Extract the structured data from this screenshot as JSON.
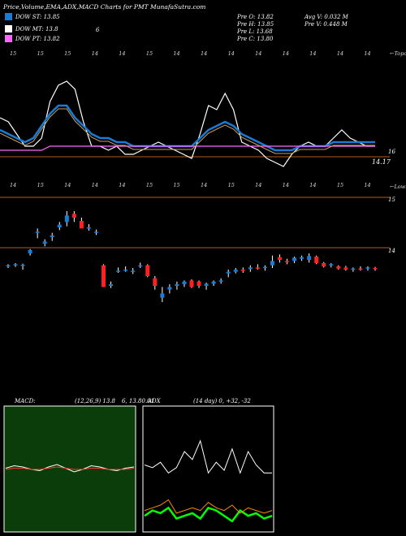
{
  "title": "Price,Volume,EMA,ADX,MACD Charts for PMT MunafaSutra.com",
  "legend": [
    {
      "label": "DOW ST: 13.85",
      "color": "#1a7bd6"
    },
    {
      "label": "DOW MT: 13.8",
      "color": "#ffffff"
    },
    {
      "label": "DOW PT: 13.82",
      "color": "#ff66ff"
    }
  ],
  "legend_extra": "6",
  "prev": {
    "o": "Pre O: 13.82",
    "h": "Pre H: 13.85",
    "l": "Pre L: 13.68",
    "c": "Pre C: 13.80"
  },
  "avg_volume": "Avg V: 0.032 M",
  "pre_volume": "Pre V: 0.448 M",
  "top_right_label": "←Topo",
  "lower_right_label": "←Lown",
  "ema_price_label": "14.17",
  "ema_axis_label": "16",
  "candle_axis_high": "15",
  "candle_axis_low": "14",
  "macd_label": "MACD:",
  "macd_params": "(12,26,9) 13.8",
  "macd_values": "6, 13.80.01",
  "adx_label": "ADX",
  "adx_params": "(14 day) 0, +32, -32",
  "top_tick_labels": [
    "15",
    "15",
    "15",
    "14",
    "14",
    "15",
    "14",
    "14",
    "14",
    "14",
    "14",
    "14",
    "14",
    "14"
  ],
  "bottom_tick_labels": [
    "14",
    "15",
    "14",
    "14",
    "14",
    "15",
    "15",
    "14",
    "15",
    "14",
    "14",
    "14",
    "15",
    "14"
  ],
  "chart_data": [
    {
      "type": "line",
      "name": "ema-price-panel",
      "series": [
        {
          "color": "#ffffff",
          "values": [
            15.0,
            14.9,
            14.6,
            14.3,
            14.3,
            14.5,
            15.4,
            15.8,
            15.9,
            15.7,
            14.9,
            14.3,
            14.3,
            14.2,
            14.3,
            14.1,
            14.1,
            14.2,
            14.3,
            14.4,
            14.3,
            14.2,
            14.1,
            14.0,
            14.6,
            15.3,
            15.2,
            15.6,
            15.2,
            14.4,
            14.3,
            14.2,
            14.0,
            13.9,
            13.8,
            14.1,
            14.3,
            14.4,
            14.3,
            14.3,
            14.5,
            14.7,
            14.5,
            14.4,
            14.3,
            14.3
          ]
        },
        {
          "color": "#1a7bd6",
          "values": [
            14.7,
            14.6,
            14.5,
            14.4,
            14.5,
            14.8,
            15.1,
            15.3,
            15.3,
            15.0,
            14.8,
            14.6,
            14.5,
            14.5,
            14.4,
            14.4,
            14.3,
            14.3,
            14.3,
            14.3,
            14.3,
            14.3,
            14.3,
            14.3,
            14.5,
            14.7,
            14.8,
            14.9,
            14.8,
            14.6,
            14.5,
            14.4,
            14.3,
            14.2,
            14.2,
            14.2,
            14.3,
            14.3,
            14.3,
            14.3,
            14.4,
            14.4,
            14.4,
            14.4,
            14.4,
            14.4
          ]
        },
        {
          "color": "#ff66ff",
          "values": [
            14.2,
            14.2,
            14.2,
            14.2,
            14.2,
            14.2,
            14.3,
            14.3,
            14.3,
            14.3,
            14.3,
            14.3,
            14.3,
            14.3,
            14.3,
            14.3,
            14.3,
            14.3,
            14.3,
            14.3,
            14.3,
            14.3,
            14.3,
            14.3,
            14.3,
            14.3,
            14.3,
            14.3,
            14.3,
            14.3,
            14.3,
            14.3,
            14.3,
            14.3,
            14.3,
            14.3,
            14.3,
            14.3,
            14.3,
            14.3,
            14.3,
            14.3,
            14.3,
            14.3,
            14.3,
            14.3
          ]
        }
      ]
    },
    {
      "type": "candlestick",
      "name": "price-candles",
      "ylim": [
        13.2,
        15.3
      ],
      "candles": [
        {
          "o": 14.0,
          "h": 14.02,
          "l": 13.95,
          "c": 14.0
        },
        {
          "o": 14.01,
          "h": 14.04,
          "l": 13.97,
          "c": 14.02
        },
        {
          "o": 14.0,
          "h": 14.03,
          "l": 13.92,
          "c": 14.01
        },
        {
          "o": 14.22,
          "h": 14.3,
          "l": 14.18,
          "c": 14.28
        },
        {
          "o": 14.6,
          "h": 14.68,
          "l": 14.5,
          "c": 14.62
        },
        {
          "o": 14.4,
          "h": 14.48,
          "l": 14.35,
          "c": 14.44
        },
        {
          "o": 14.52,
          "h": 14.6,
          "l": 14.45,
          "c": 14.55
        },
        {
          "o": 14.7,
          "h": 14.8,
          "l": 14.65,
          "c": 14.75
        },
        {
          "o": 14.8,
          "h": 15.0,
          "l": 14.72,
          "c": 14.92
        },
        {
          "o": 14.95,
          "h": 15.0,
          "l": 14.8,
          "c": 14.88
        },
        {
          "o": 14.82,
          "h": 14.88,
          "l": 14.7,
          "c": 14.68
        },
        {
          "o": 14.7,
          "h": 14.76,
          "l": 14.64,
          "c": 14.7
        },
        {
          "o": 14.62,
          "h": 14.66,
          "l": 14.56,
          "c": 14.62
        },
        {
          "o": 14.0,
          "h": 14.02,
          "l": 13.6,
          "c": 13.6
        },
        {
          "o": 13.62,
          "h": 13.7,
          "l": 13.58,
          "c": 13.65
        },
        {
          "o": 13.9,
          "h": 13.96,
          "l": 13.86,
          "c": 13.9
        },
        {
          "o": 13.92,
          "h": 13.98,
          "l": 13.88,
          "c": 13.92
        },
        {
          "o": 13.88,
          "h": 13.95,
          "l": 13.84,
          "c": 13.9
        },
        {
          "o": 14.0,
          "h": 14.05,
          "l": 13.95,
          "c": 14.0
        },
        {
          "o": 14.0,
          "h": 14.02,
          "l": 13.78,
          "c": 13.8
        },
        {
          "o": 13.76,
          "h": 13.8,
          "l": 13.55,
          "c": 13.62
        },
        {
          "o": 13.4,
          "h": 13.6,
          "l": 13.32,
          "c": 13.48
        },
        {
          "o": 13.55,
          "h": 13.65,
          "l": 13.48,
          "c": 13.6
        },
        {
          "o": 13.62,
          "h": 13.7,
          "l": 13.55,
          "c": 13.65
        },
        {
          "o": 13.65,
          "h": 13.72,
          "l": 13.6,
          "c": 13.7
        },
        {
          "o": 13.72,
          "h": 13.74,
          "l": 13.58,
          "c": 13.6
        },
        {
          "o": 13.7,
          "h": 13.72,
          "l": 13.58,
          "c": 13.62
        },
        {
          "o": 13.62,
          "h": 13.68,
          "l": 13.55,
          "c": 13.66
        },
        {
          "o": 13.66,
          "h": 13.72,
          "l": 13.62,
          "c": 13.7
        },
        {
          "o": 13.7,
          "h": 13.76,
          "l": 13.66,
          "c": 13.72
        },
        {
          "o": 13.85,
          "h": 13.92,
          "l": 13.78,
          "c": 13.88
        },
        {
          "o": 13.88,
          "h": 13.95,
          "l": 13.85,
          "c": 13.92
        },
        {
          "o": 13.92,
          "h": 13.96,
          "l": 13.86,
          "c": 13.9
        },
        {
          "o": 13.93,
          "h": 14.0,
          "l": 13.88,
          "c": 13.96
        },
        {
          "o": 13.96,
          "h": 14.02,
          "l": 13.92,
          "c": 13.94
        },
        {
          "o": 13.96,
          "h": 14.0,
          "l": 13.9,
          "c": 13.97
        },
        {
          "o": 14.0,
          "h": 14.18,
          "l": 13.95,
          "c": 14.08
        },
        {
          "o": 14.15,
          "h": 14.2,
          "l": 14.05,
          "c": 14.1
        },
        {
          "o": 14.08,
          "h": 14.12,
          "l": 14.02,
          "c": 14.06
        },
        {
          "o": 14.08,
          "h": 14.16,
          "l": 14.04,
          "c": 14.14
        },
        {
          "o": 14.12,
          "h": 14.18,
          "l": 14.08,
          "c": 14.15
        },
        {
          "o": 14.1,
          "h": 14.22,
          "l": 14.05,
          "c": 14.17
        },
        {
          "o": 14.16,
          "h": 14.18,
          "l": 14.02,
          "c": 14.04
        },
        {
          "o": 14.04,
          "h": 14.06,
          "l": 13.96,
          "c": 13.98
        },
        {
          "o": 14.0,
          "h": 14.04,
          "l": 13.96,
          "c": 14.02
        },
        {
          "o": 13.98,
          "h": 14.0,
          "l": 13.92,
          "c": 13.94
        },
        {
          "o": 13.96,
          "h": 13.99,
          "l": 13.9,
          "c": 13.92
        },
        {
          "o": 13.92,
          "h": 13.96,
          "l": 13.88,
          "c": 13.94
        },
        {
          "o": 13.94,
          "h": 13.98,
          "l": 13.9,
          "c": 13.92
        },
        {
          "o": 13.94,
          "h": 13.98,
          "l": 13.9,
          "c": 13.96
        },
        {
          "o": 13.95,
          "h": 13.97,
          "l": 13.9,
          "c": 13.93
        }
      ]
    },
    {
      "type": "line",
      "name": "macd-panel",
      "series": [
        {
          "color": "#ffffff",
          "values": [
            0.1,
            0.3,
            0.2,
            0.0,
            -0.1,
            0.2,
            0.4,
            0.1,
            -0.2,
            0.0,
            0.3,
            0.2,
            0.0,
            -0.1,
            0.1,
            0.2
          ]
        },
        {
          "color": "#ff3333",
          "values": [
            0.0,
            0.1,
            0.1,
            0.0,
            0.0,
            0.1,
            0.2,
            0.1,
            0.0,
            0.0,
            0.1,
            0.1,
            0.0,
            0.0,
            0.0,
            0.1
          ]
        }
      ]
    },
    {
      "type": "line",
      "name": "adx-panel",
      "series": [
        {
          "color": "#ffffff",
          "values": [
            25,
            24,
            26,
            22,
            24,
            30,
            27,
            34,
            22,
            26,
            23,
            31,
            22,
            30,
            25,
            22,
            22
          ]
        },
        {
          "color": "#00ff00",
          "values": [
            6,
            8,
            7,
            9,
            5,
            6,
            7,
            5,
            9,
            8,
            6,
            4,
            8,
            6,
            7,
            5,
            6
          ]
        },
        {
          "color": "#ff8800",
          "values": [
            8,
            9,
            10,
            12,
            7,
            8,
            9,
            8,
            11,
            9,
            8,
            10,
            7,
            9,
            8,
            7,
            8
          ]
        }
      ]
    }
  ]
}
